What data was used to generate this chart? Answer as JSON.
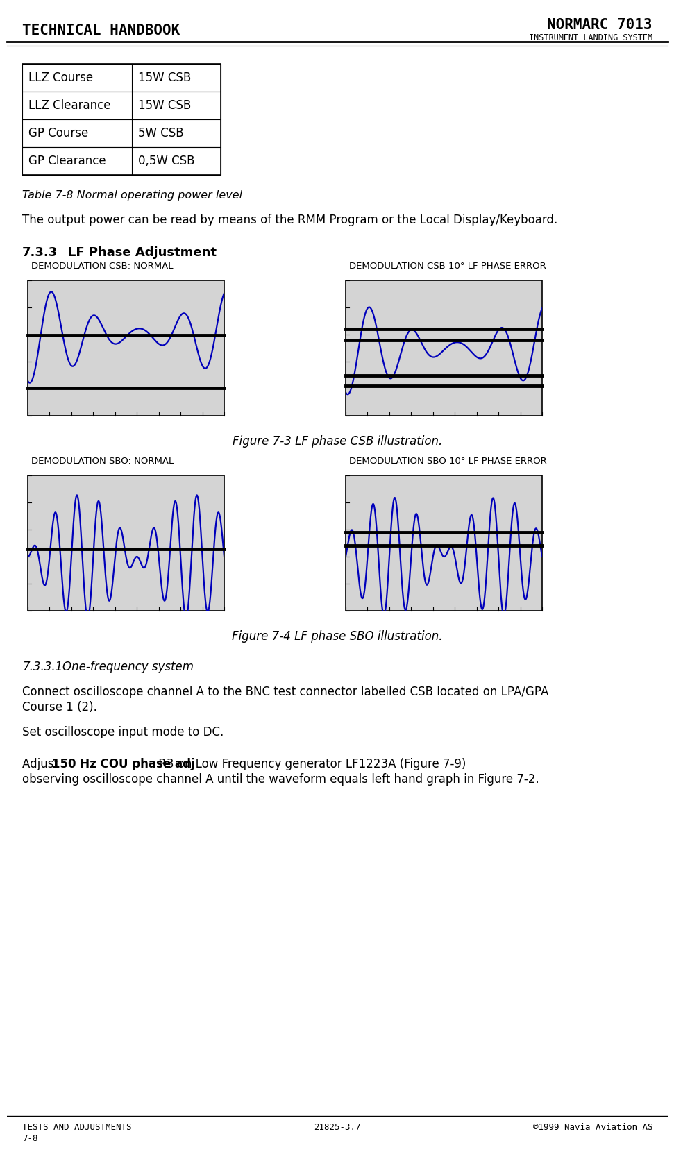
{
  "title_left": "TECHNICAL HANDBOOK",
  "title_right": "NORMARC 7013",
  "subtitle_right": "INSTRUMENT LANDING SYSTEM",
  "footer_left": "TESTS AND ADJUSTMENTS",
  "footer_center": "21825-3.7",
  "footer_right": "©1999 Navia Aviation AS",
  "page_number": "7-8",
  "table_rows": [
    [
      "LLZ Course",
      "15W CSB"
    ],
    [
      "LLZ Clearance",
      "15W CSB"
    ],
    [
      "GP Course",
      "5W CSB"
    ],
    [
      "GP Clearance",
      "0,5W CSB"
    ]
  ],
  "table_caption": "Table 7-8 Normal operating power level",
  "body_text1": "The output power can be read by means of the RMM Program or the Local Display/Keyboard.",
  "section_num": "7.3.3",
  "section_title": "LF Phase Adjustment",
  "csb_label_left": "DEMODULATION CSB: NORMAL",
  "csb_label_right": "DEMODULATION CSB 10° LF PHASE ERROR",
  "sbo_label_left": "DEMODULATION SBO: NORMAL",
  "sbo_label_right": "DEMODULATION SBO 10° LF PHASE ERROR",
  "fig3_caption": "Figure 7-3 LF phase CSB illustration.",
  "fig4_caption": "Figure 7-4 LF phase SBO illustration.",
  "section2_num": "7.3.3.1",
  "section2_title": "One-frequency system",
  "body_text2_line1": "Connect oscilloscope channel A to the BNC test connector labelled CSB located on LPA/GPA",
  "body_text2_line2": "Course 1 (2).",
  "body_text3": "Set oscilloscope input mode to DC.",
  "body_text4_pre": "Adjust ",
  "body_text4_bold": "150 Hz COU phase adj",
  "body_text4_post": " R3 on Low Frequency generator LF1223A (Figure 7-9)",
  "body_text4_line2": "observing oscilloscope channel A until the waveform equals left hand graph in Figure 7-2.",
  "bg_color": "#d4d4d4",
  "wave_color": "#0000bb",
  "plot_border": "#000000"
}
